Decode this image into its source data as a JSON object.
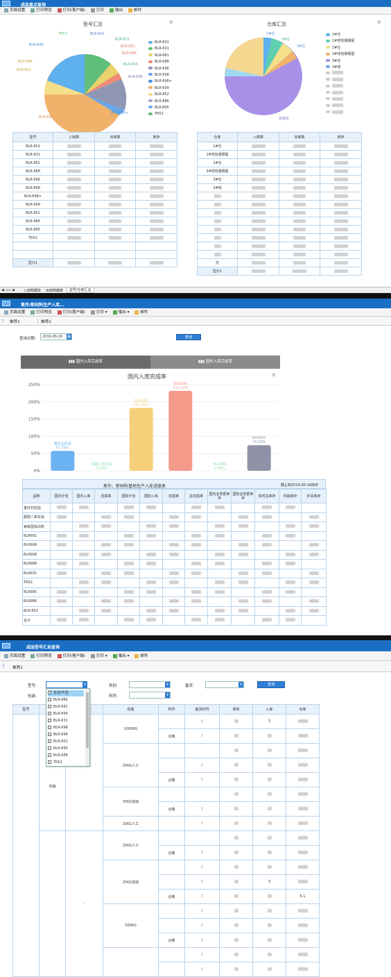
{
  "s1": {
    "window_title": "成品盘点查询",
    "toolbar": [
      "页面设置",
      "打印预览",
      "打印(客户端)",
      "打印",
      "输出",
      "邮件"
    ],
    "left_chart": {
      "title": "型号汇总",
      "legend": [
        "BLR-601",
        "BLR-631",
        "BLR-681",
        "BLR-688",
        "BLR-696",
        "BLR-698",
        "BLR-698+",
        "BLR-699",
        "BLR-852",
        "BLR-886",
        "BLR-895",
        "TR52"
      ],
      "labels": [
        "TR52",
        "BLR-601",
        "BLR-631",
        "BLR-681",
        "BLR-688",
        "BLR-895",
        "BLR-886",
        "BLR-852",
        "BLR-698",
        "BLR-699",
        "BLR-698+",
        "BLR-696"
      ]
    },
    "right_chart": {
      "title": "仓库汇总",
      "legend": [
        "1#仓",
        "1#线包装钢屋",
        "2#仓",
        "2#线包装钢屋",
        "3#仓",
        "3#线"
      ],
      "labels": [
        "1#仓",
        "2#仓",
        "3#仓",
        "总库仓"
      ]
    },
    "left_table": {
      "headers": [
        "型号",
        "入库数",
        "出库数",
        "库存"
      ],
      "rows": [
        "BLR-601",
        "BLR-631",
        "BLR-681",
        "BLR-688",
        "BLR-696",
        "BLR-698",
        "BLR-698+",
        "BLR-699",
        "BLR-852",
        "BLR-886",
        "BLR-895",
        "TR52",
        "",
        ""
      ],
      "total": "型计1"
    },
    "right_table": {
      "headers": [
        "仓库",
        "入库数",
        "出库数",
        "库存"
      ],
      "rows": [
        "1#仓",
        "1#线包装钢屋",
        "2#仓",
        "2#线包装钢屋",
        "3#仓",
        "3#线",
        "",
        "",
        "",
        "",
        "",
        "",
        "",
        "",
        "托"
      ],
      "total": "型计1"
    },
    "bottom_tabs": [
      "入库明细单",
      "出库明细表",
      "型号/仓库汇总"
    ]
  },
  "s2": {
    "window_title": "焦作/新材料生产入库...",
    "toolbar": [
      "页面设置",
      "打印预览",
      "打印(客户端)",
      "打印",
      "输出",
      "邮件"
    ],
    "tabs": [
      "推荐1",
      "推荐2"
    ],
    "date_label": "查询日期:",
    "date_value": "2019-06-16",
    "query_button": "查询",
    "subtabs": [
      "国内入库完成率",
      "国外入库完成率"
    ],
    "chart_data": {
      "type": "bar",
      "title": "国内入库完成率",
      "ylabel": "",
      "yticks": [
        "250%",
        "200%",
        "150%",
        "100%",
        "50%",
        "0%"
      ],
      "ylim": [
        0,
        250
      ],
      "bars": [
        {
          "name": "金红石初品",
          "value": 57.78,
          "label": "57.78%",
          "color": "#6ab2f2"
        },
        {
          "name": "脱硫二氧化钛",
          "value": 0,
          "label": "0.00%",
          "color": "#8fe0b0"
        },
        {
          "name": "BLR699",
          "value": 182.8,
          "label": "182.80%",
          "color": "#f7cf7a"
        },
        {
          "name": "BLR698",
          "value": 232.13,
          "label": "232.13%",
          "color": "#f49a8a"
        },
        {
          "name": "BLR688",
          "value": 0,
          "label": "0.00%",
          "color": "#8fe0b0"
        },
        {
          "name": "BLR895",
          "value": 74.24,
          "label": "74.24%",
          "color": "#8f92a6"
        }
      ]
    },
    "table": {
      "title": "焦作、新材料基地生产入库进度表",
      "date_note": "截止到2019-06-16库存",
      "headers": [
        "品种",
        "国内计划",
        "国内入库",
        "完成率",
        "国际计划",
        "国际入库",
        "完成率",
        "总完成率",
        "国内业务部库存",
        "国际业务部库存",
        "实时总库存",
        "内销库存",
        "外贸库存"
      ],
      "rows": [
        "金红石初品",
        "脱硫二氧化钛",
        "钠钛型钛白粉",
        "BLR601",
        "BLR699",
        "BLR698",
        "BLR688",
        "BLR631",
        "TR52",
        "BLR895",
        "BLR886",
        "BLR-852",
        "合计"
      ]
    }
  },
  "s3": {
    "window_title": "成品型号汇总查询",
    "toolbar": [
      "页面设置",
      "打印预览",
      "打印(客户端)",
      "打印",
      "输出",
      "邮件"
    ],
    "tab": "推荐1",
    "filters": {
      "model_label": "型号:",
      "category_label": "类别:",
      "stock_label": "备货:",
      "package_label": "包装:",
      "profit_label": "利符:",
      "query_button": "查询"
    },
    "dropdown_options": [
      "全选/不选",
      "BLR-886",
      "BLR-681",
      "BLR-699",
      "BLR-631",
      "BLR-698",
      "BLR-696",
      "BLR-601",
      "BLR-895",
      "BLR-688",
      "TR52"
    ],
    "headers": [
      "型号",
      "",
      "",
      "包装",
      "利符",
      "备货利符",
      "库存",
      "入库",
      "出库"
    ],
    "cells": {
      "neixiao": "内销",
      "pk_1000": "1000KG",
      "pk_25r1": "25KG人工",
      "pk_25z1": "25KG自动",
      "pk_25r2": "25KG人工",
      "pk_25r3": "25KG人工",
      "pk_25z2": "25KG自动",
      "pk_500": "500KG",
      "hege": "合格",
      "slash": "/",
      "dash": "-",
      "model": "BLR-601",
      "val_3": "3",
      "val_6": "6.1"
    }
  }
}
